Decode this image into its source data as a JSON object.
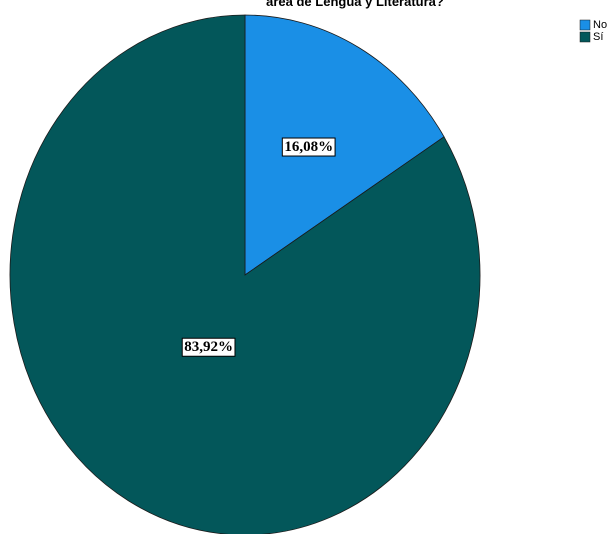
{
  "chart_data": {
    "type": "pie",
    "title": "área de Lengua y Literatura?",
    "categories": [
      "No",
      "Sí"
    ],
    "values": [
      16.08,
      83.92
    ],
    "value_labels": [
      "16,08%",
      "83,92%"
    ],
    "colors": [
      "#1a8fe6",
      "#03575a"
    ],
    "legend": "upper right"
  }
}
